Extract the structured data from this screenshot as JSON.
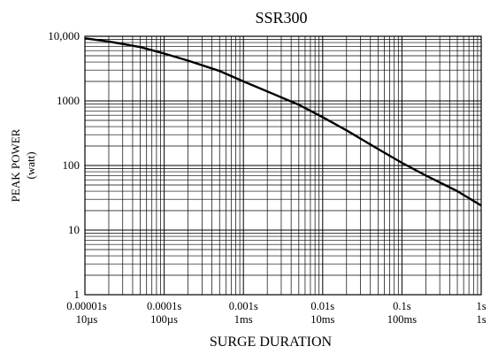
{
  "chart_data": {
    "type": "line",
    "title": "SSR300",
    "xlabel": "SURGE DURATION",
    "ylabel": "PEAK POWER",
    "ylabel_unit": "(watt)",
    "x_scale": "log",
    "y_scale": "log",
    "xlim": [
      1e-05,
      1
    ],
    "ylim": [
      1,
      10000
    ],
    "grid": true,
    "x_ticks": [
      {
        "value": 1e-05,
        "label1": "0.00001s",
        "label2": "10µs"
      },
      {
        "value": 0.0001,
        "label1": "0.0001s",
        "label2": "100µs"
      },
      {
        "value": 0.001,
        "label1": "0.001s",
        "label2": "1ms"
      },
      {
        "value": 0.01,
        "label1": "0.01s",
        "label2": "10ms"
      },
      {
        "value": 0.1,
        "label1": "0.1s",
        "label2": "100ms"
      },
      {
        "value": 1,
        "label1": "1s",
        "label2": "1s"
      }
    ],
    "y_ticks": [
      {
        "value": 10000,
        "label": "10,000"
      },
      {
        "value": 1000,
        "label": "1000"
      },
      {
        "value": 100,
        "label": "100"
      },
      {
        "value": 10,
        "label": "10"
      },
      {
        "value": 1,
        "label": "1"
      }
    ],
    "series": [
      {
        "x": [
          1e-05,
          2e-05,
          5e-05,
          0.0001,
          0.0002,
          0.0005,
          0.001,
          0.002,
          0.005,
          0.01,
          0.02,
          0.05,
          0.1,
          0.2,
          0.5,
          1
        ],
        "y": [
          9300,
          8300,
          6800,
          5400,
          4200,
          2900,
          2000,
          1400,
          870,
          560,
          350,
          180,
          110,
          70,
          40,
          24
        ]
      }
    ],
    "line_color": "#000000"
  }
}
